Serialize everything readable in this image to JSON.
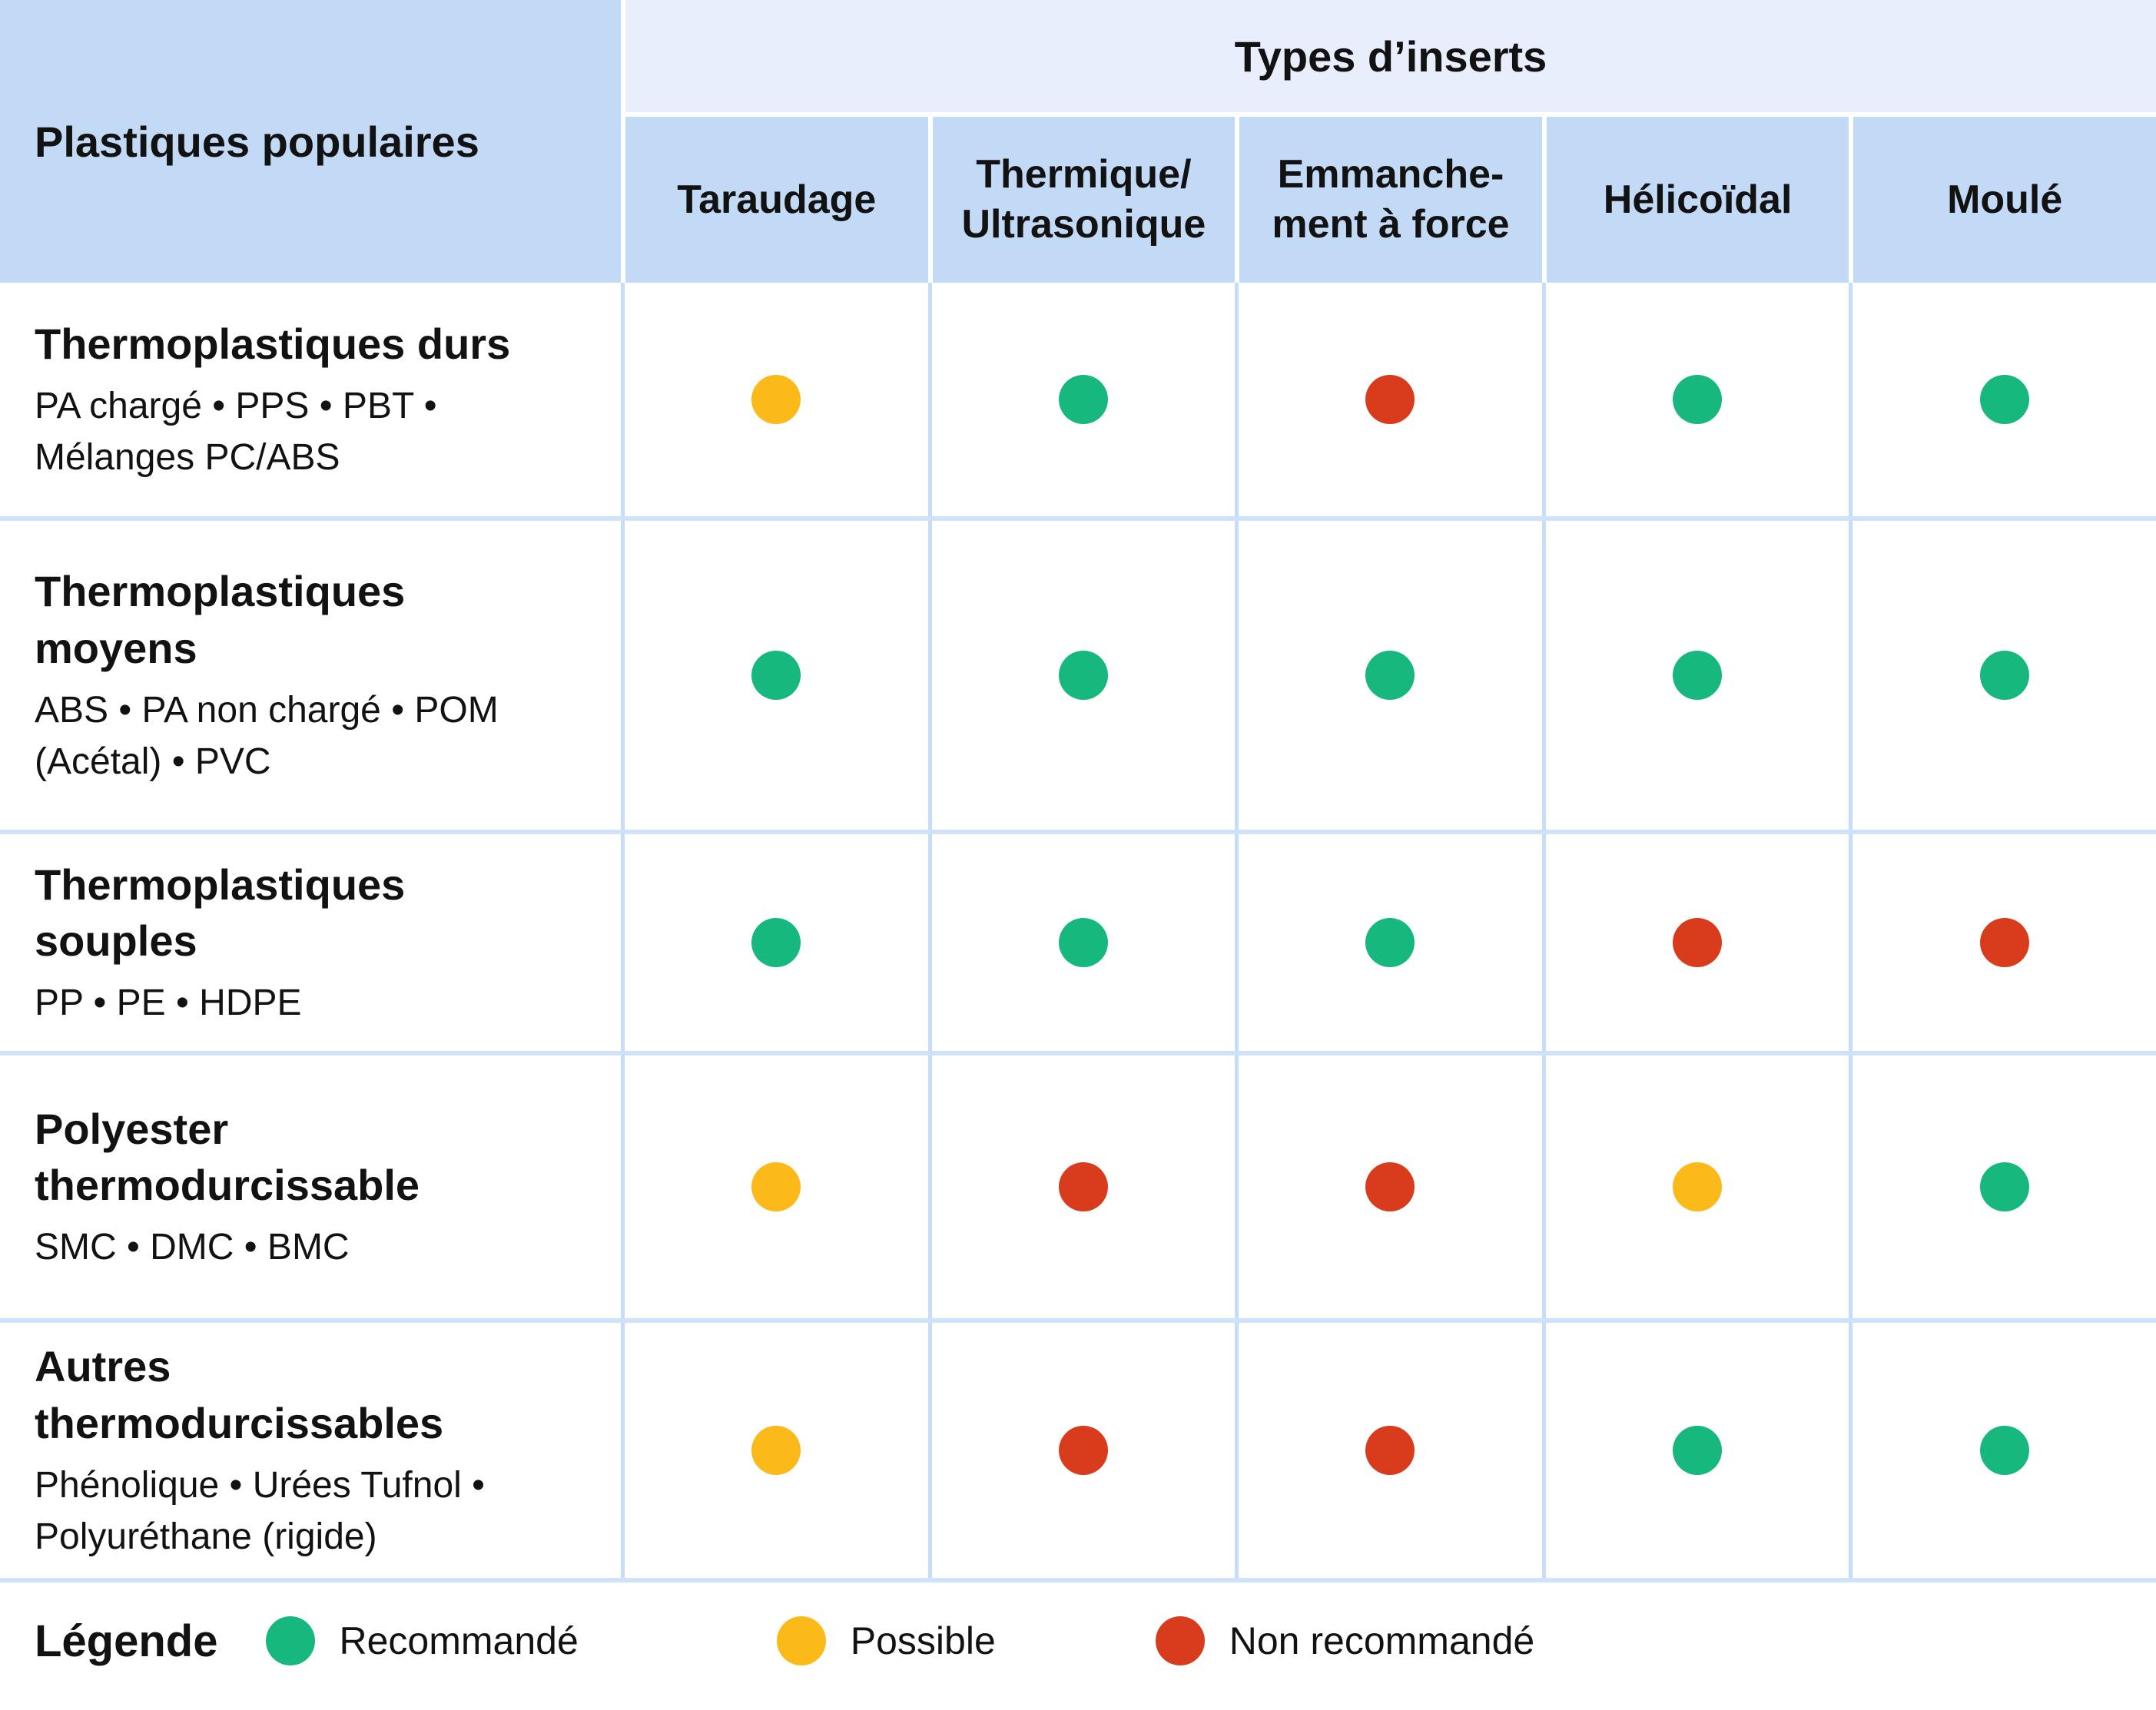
{
  "table": {
    "corner_header": "Plastiques populaires",
    "group_header": "Types d’inserts",
    "columns": [
      "Taraudage",
      "Thermique/\nUltrasonique",
      "Emmanche-\nment à force",
      "Hélicoïdal",
      "Moulé"
    ],
    "rows": [
      {
        "title": "Thermoplastiques durs",
        "subtitle": "PA chargé • PPS • PBT •\nMélanges PC/ABS",
        "dots": [
          "possible",
          "recommended",
          "not_recommended",
          "recommended",
          "recommended"
        ]
      },
      {
        "title": "Thermoplastiques\nmoyens",
        "subtitle": "ABS • PA non chargé • POM\n(Acétal) • PVC",
        "dots": [
          "recommended",
          "recommended",
          "recommended",
          "recommended",
          "recommended"
        ]
      },
      {
        "title": "Thermoplastiques\nsouples",
        "subtitle": "PP • PE • HDPE",
        "dots": [
          "recommended",
          "recommended",
          "recommended",
          "not_recommended",
          "not_recommended"
        ]
      },
      {
        "title": "Polyester\nthermodurcissable",
        "subtitle": "SMC • DMC • BMC",
        "dots": [
          "possible",
          "not_recommended",
          "not_recommended",
          "possible",
          "recommended"
        ]
      },
      {
        "title": "Autres\nthermodurcissables",
        "subtitle": "Phénolique • Urées Tufnol •\nPolyuréthane (rigide)",
        "dots": [
          "possible",
          "not_recommended",
          "not_recommended",
          "recommended",
          "recommended"
        ]
      }
    ]
  },
  "legend": {
    "title": "Légende",
    "items": [
      {
        "status": "recommended",
        "label": "Recommandé"
      },
      {
        "status": "possible",
        "label": "Possible"
      },
      {
        "status": "not_recommended",
        "label": "Non recommandé"
      }
    ]
  },
  "colors": {
    "recommended": "#16b87e",
    "possible": "#fcba1a",
    "not_recommended": "#d93b1d",
    "header_blue": "#c3daf7",
    "band_blue": "#e8eefb",
    "grid_line_horizontal": "#cfe2f9",
    "grid_line_vertical": "#c6dcf8"
  },
  "chart_data": {
    "type": "table",
    "title": "Types d’inserts",
    "row_header": "Plastiques populaires",
    "columns": [
      "Taraudage",
      "Thermique/Ultrasonique",
      "Emmanchement à force",
      "Hélicoïdal",
      "Moulé"
    ],
    "rows": [
      "Thermoplastiques durs (PA chargé • PPS • PBT • Mélanges PC/ABS)",
      "Thermoplastiques moyens (ABS • PA non chargé • POM (Acétal) • PVC)",
      "Thermoplastiques souples (PP • PE • HDPE)",
      "Polyester thermodurcissable (SMC • DMC • BMC)",
      "Autres thermodurcissables (Phénolique • Urées Tufnol • Polyuréthane (rigide))"
    ],
    "values": [
      [
        "Possible",
        "Recommandé",
        "Non recommandé",
        "Recommandé",
        "Recommandé"
      ],
      [
        "Recommandé",
        "Recommandé",
        "Recommandé",
        "Recommandé",
        "Recommandé"
      ],
      [
        "Recommandé",
        "Recommandé",
        "Recommandé",
        "Non recommandé",
        "Non recommandé"
      ],
      [
        "Possible",
        "Non recommandé",
        "Non recommandé",
        "Possible",
        "Recommandé"
      ],
      [
        "Possible",
        "Non recommandé",
        "Non recommandé",
        "Recommandé",
        "Recommandé"
      ]
    ],
    "legend": [
      "Recommandé = vert",
      "Possible = jaune",
      "Non recommandé = rouge"
    ]
  }
}
